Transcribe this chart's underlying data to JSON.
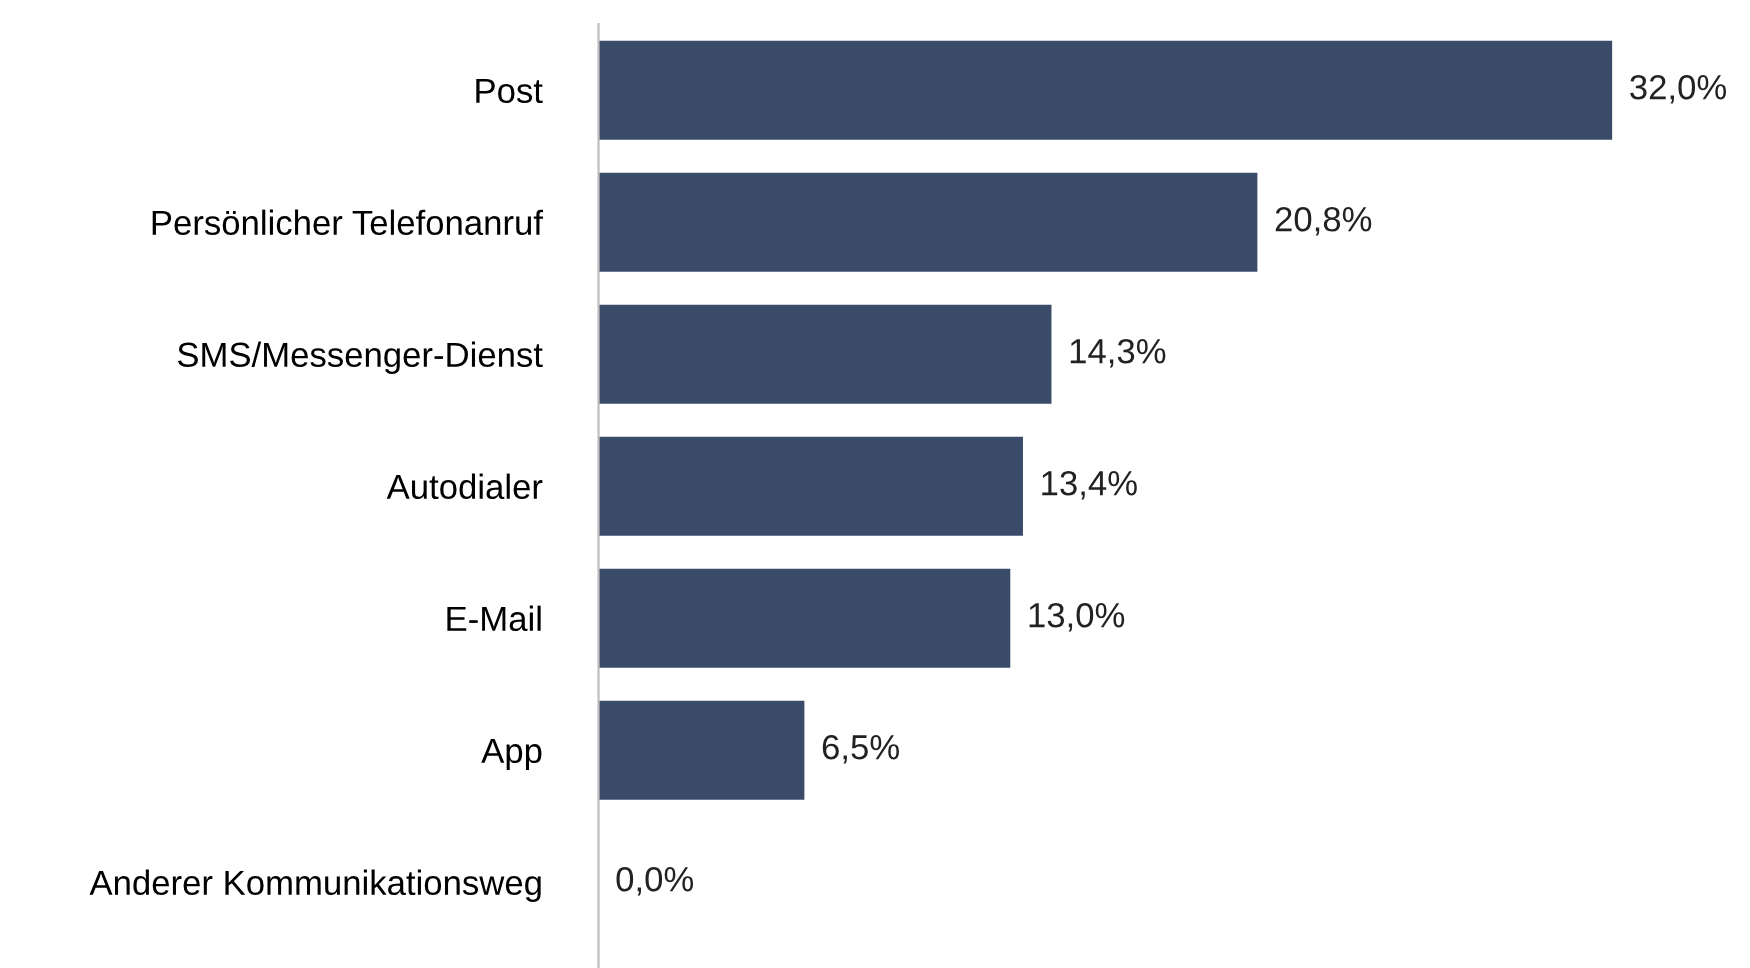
{
  "chart_data": {
    "type": "bar",
    "orientation": "horizontal",
    "categories": [
      "Post",
      "Persönlicher Telefonanruf",
      "SMS/Messenger-Dienst",
      "Autodialer",
      "E-Mail",
      "App",
      "Anderer Kommunikationsweg"
    ],
    "values": [
      32.0,
      20.8,
      14.3,
      13.4,
      13.0,
      6.5,
      0.0
    ],
    "value_labels": [
      "32,0%",
      "20,8%",
      "14,3%",
      "13,4%",
      "13,0%",
      "6,5%",
      "0,0%"
    ],
    "color": "#3a4b69",
    "grid": false,
    "legend": false
  }
}
